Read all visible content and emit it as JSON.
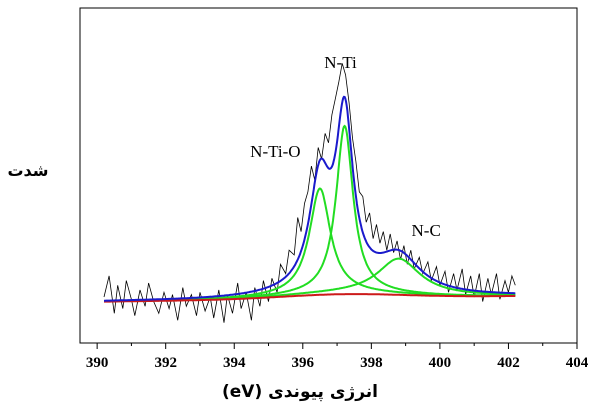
{
  "chart_data": {
    "type": "line",
    "xlabel": "انرژی پیوندی (eV)",
    "ylabel": "شدت",
    "xlim": [
      389.5,
      404
    ],
    "xticks": [
      390,
      392,
      394,
      396,
      398,
      400,
      402,
      404
    ],
    "x_tick_labels": [
      "390",
      "392",
      "394",
      "396",
      "398",
      "400",
      "402",
      "404"
    ],
    "y_tick_labels": [],
    "grid": false,
    "annotations": [
      {
        "text": "N-Ti",
        "x": 397.1,
        "y": 1.0
      },
      {
        "text": "N-Ti-O",
        "x": 395.2,
        "y": 0.62
      },
      {
        "text": "N-C",
        "x": 399.6,
        "y": 0.28
      }
    ],
    "x_range": [
      390.2,
      402.2
    ],
    "background": {
      "value": 0.0,
      "slope": 0.002,
      "bump_center": 397.2,
      "bump_height": 0.018,
      "bump_width": 2.5
    },
    "components": [
      {
        "center": 396.5,
        "height": 0.455,
        "sigma": 0.47,
        "color": "#22dd22"
      },
      {
        "center": 397.22,
        "height": 0.72,
        "sigma": 0.38,
        "color": "#22dd22"
      },
      {
        "center": 398.8,
        "height": 0.155,
        "sigma": 0.95,
        "color": "#22dd22"
      }
    ],
    "series": [
      {
        "role": "raw",
        "color": "#000000"
      },
      {
        "role": "fit",
        "color": "#1a1acc"
      },
      {
        "role": "component",
        "color": "#22dd22"
      },
      {
        "role": "background",
        "color": "#cc1a1a"
      }
    ],
    "raw_points": [
      [
        390.2,
        0.02
      ],
      [
        390.35,
        0.11
      ],
      [
        390.5,
        -0.05
      ],
      [
        390.6,
        0.07
      ],
      [
        390.75,
        -0.03
      ],
      [
        390.85,
        0.09
      ],
      [
        391.0,
        0.01
      ],
      [
        391.1,
        -0.06
      ],
      [
        391.25,
        0.05
      ],
      [
        391.4,
        -0.02
      ],
      [
        391.5,
        0.08
      ],
      [
        391.65,
        0.0
      ],
      [
        391.8,
        -0.05
      ],
      [
        391.95,
        0.04
      ],
      [
        392.1,
        -0.03
      ],
      [
        392.2,
        0.03
      ],
      [
        392.35,
        -0.08
      ],
      [
        392.5,
        0.06
      ],
      [
        392.6,
        -0.02
      ],
      [
        392.75,
        0.03
      ],
      [
        392.9,
        -0.06
      ],
      [
        393.0,
        0.04
      ],
      [
        393.15,
        -0.04
      ],
      [
        393.3,
        0.02
      ],
      [
        393.4,
        -0.07
      ],
      [
        393.55,
        0.05
      ],
      [
        393.7,
        -0.09
      ],
      [
        393.8,
        0.03
      ],
      [
        393.95,
        -0.05
      ],
      [
        394.1,
        0.08
      ],
      [
        394.2,
        -0.03
      ],
      [
        394.35,
        0.04
      ],
      [
        394.5,
        -0.08
      ],
      [
        394.6,
        0.06
      ],
      [
        394.75,
        -0.02
      ],
      [
        394.85,
        0.09
      ],
      [
        395.0,
        0.0
      ],
      [
        395.1,
        0.1
      ],
      [
        395.25,
        0.04
      ],
      [
        395.35,
        0.16
      ],
      [
        395.5,
        0.12
      ],
      [
        395.6,
        0.22
      ],
      [
        395.75,
        0.2
      ],
      [
        395.85,
        0.36
      ],
      [
        395.95,
        0.3
      ],
      [
        396.05,
        0.42
      ],
      [
        396.15,
        0.47
      ],
      [
        396.25,
        0.58
      ],
      [
        396.35,
        0.52
      ],
      [
        396.45,
        0.66
      ],
      [
        396.55,
        0.61
      ],
      [
        396.65,
        0.72
      ],
      [
        396.75,
        0.68
      ],
      [
        396.85,
        0.8
      ],
      [
        396.95,
        0.87
      ],
      [
        397.05,
        0.94
      ],
      [
        397.15,
        1.02
      ],
      [
        397.25,
        0.97
      ],
      [
        397.35,
        0.85
      ],
      [
        397.45,
        0.7
      ],
      [
        397.55,
        0.6
      ],
      [
        397.65,
        0.47
      ],
      [
        397.75,
        0.45
      ],
      [
        397.85,
        0.34
      ],
      [
        397.95,
        0.38
      ],
      [
        398.05,
        0.27
      ],
      [
        398.15,
        0.33
      ],
      [
        398.25,
        0.25
      ],
      [
        398.35,
        0.3
      ],
      [
        398.45,
        0.22
      ],
      [
        398.55,
        0.29
      ],
      [
        398.65,
        0.21
      ],
      [
        398.75,
        0.26
      ],
      [
        398.85,
        0.18
      ],
      [
        398.95,
        0.24
      ],
      [
        399.05,
        0.16
      ],
      [
        399.15,
        0.22
      ],
      [
        399.25,
        0.14
      ],
      [
        399.4,
        0.19
      ],
      [
        399.5,
        0.12
      ],
      [
        399.65,
        0.17
      ],
      [
        399.75,
        0.09
      ],
      [
        399.9,
        0.15
      ],
      [
        400.0,
        0.07
      ],
      [
        400.15,
        0.13
      ],
      [
        400.25,
        0.04
      ],
      [
        400.4,
        0.12
      ],
      [
        400.5,
        0.05
      ],
      [
        400.65,
        0.14
      ],
      [
        400.75,
        0.03
      ],
      [
        400.9,
        0.11
      ],
      [
        401.0,
        0.02
      ],
      [
        401.15,
        0.12
      ],
      [
        401.25,
        0.0
      ],
      [
        401.4,
        0.1
      ],
      [
        401.5,
        0.03
      ],
      [
        401.65,
        0.12
      ],
      [
        401.75,
        0.01
      ],
      [
        401.9,
        0.09
      ],
      [
        402.0,
        0.04
      ],
      [
        402.1,
        0.11
      ],
      [
        402.2,
        0.07
      ]
    ],
    "ylim": [
      -0.1,
      1.12
    ]
  }
}
